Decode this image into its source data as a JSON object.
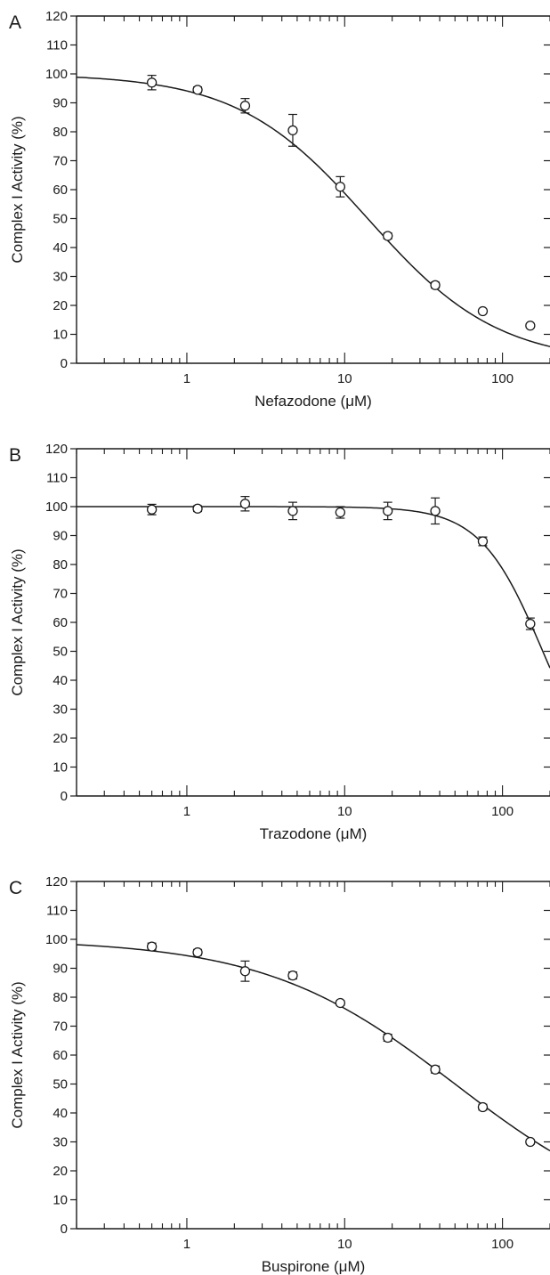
{
  "chart_data": [
    {
      "type": "scatter",
      "panel_label": "A",
      "xlabel": "Nefazodone (μM)",
      "ylabel": "Complex I Activity (%)",
      "xscale": "log",
      "xlim": [
        0.2,
        200
      ],
      "ylim": [
        0,
        120
      ],
      "x_ticks": [
        1,
        10,
        100
      ],
      "x_tick_labels": [
        "1",
        "10",
        "100"
      ],
      "y_ticks": [
        0,
        10,
        20,
        30,
        40,
        50,
        60,
        70,
        80,
        90,
        100,
        110,
        120
      ],
      "y_tick_labels": [
        "0",
        "10",
        "20",
        "30",
        "40",
        "50",
        "60",
        "70",
        "80",
        "90",
        "100",
        "110",
        "120"
      ],
      "grid": false,
      "legend": "none",
      "points": [
        {
          "x": 0.6,
          "y": 97,
          "err": 2.5
        },
        {
          "x": 1.17,
          "y": 94.5,
          "err": 1
        },
        {
          "x": 2.34,
          "y": 89,
          "err": 2.5
        },
        {
          "x": 4.69,
          "y": 80.5,
          "err": 5.5
        },
        {
          "x": 9.38,
          "y": 61,
          "err": 3.5
        },
        {
          "x": 18.75,
          "y": 44,
          "err": 1
        },
        {
          "x": 37.5,
          "y": 27,
          "err": 1
        },
        {
          "x": 75,
          "y": 18,
          "err": 0.7
        },
        {
          "x": 150,
          "y": 13,
          "err": 0.7
        }
      ],
      "fit": {
        "model": "sigmoidal dose-response",
        "top": 100,
        "ic50": 14,
        "hill": 1.05
      }
    },
    {
      "type": "scatter",
      "panel_label": "B",
      "xlabel": "Trazodone (μM)",
      "ylabel": "Complex I Activity (%)",
      "xscale": "log",
      "xlim": [
        0.2,
        200
      ],
      "ylim": [
        0,
        120
      ],
      "x_ticks": [
        1,
        10,
        100
      ],
      "x_tick_labels": [
        "1",
        "10",
        "100"
      ],
      "y_ticks": [
        0,
        10,
        20,
        30,
        40,
        50,
        60,
        70,
        80,
        90,
        100,
        110,
        120
      ],
      "y_tick_labels": [
        "0",
        "10",
        "20",
        "30",
        "40",
        "50",
        "60",
        "70",
        "80",
        "90",
        "100",
        "110",
        "120"
      ],
      "grid": false,
      "legend": "none",
      "points": [
        {
          "x": 0.6,
          "y": 99,
          "err": 1.8
        },
        {
          "x": 1.17,
          "y": 99.3,
          "err": 1
        },
        {
          "x": 2.34,
          "y": 101,
          "err": 2.5
        },
        {
          "x": 4.69,
          "y": 98.5,
          "err": 3
        },
        {
          "x": 9.38,
          "y": 98,
          "err": 2
        },
        {
          "x": 18.75,
          "y": 98.5,
          "err": 3
        },
        {
          "x": 37.5,
          "y": 98.5,
          "err": 4.5
        },
        {
          "x": 75,
          "y": 88,
          "err": 1.5
        },
        {
          "x": 150,
          "y": 59.5,
          "err": 2
        }
      ],
      "fit": {
        "model": "sigmoidal dose-response",
        "top": 100,
        "ic50": 180,
        "hill": 2.2
      }
    },
    {
      "type": "scatter",
      "panel_label": "C",
      "xlabel": "Buspirone (μM)",
      "ylabel": "Complex I Activity (%)",
      "xscale": "log",
      "xlim": [
        0.2,
        200
      ],
      "ylim": [
        0,
        120
      ],
      "x_ticks": [
        1,
        10,
        100
      ],
      "x_tick_labels": [
        "1",
        "10",
        "100"
      ],
      "y_ticks": [
        0,
        10,
        20,
        30,
        40,
        50,
        60,
        70,
        80,
        90,
        100,
        110,
        120
      ],
      "y_tick_labels": [
        "0",
        "10",
        "20",
        "30",
        "40",
        "50",
        "60",
        "70",
        "80",
        "90",
        "100",
        "110",
        "120"
      ],
      "grid": false,
      "legend": "none",
      "points": [
        {
          "x": 0.6,
          "y": 97.5,
          "err": 1.2
        },
        {
          "x": 1.17,
          "y": 95.5,
          "err": 1
        },
        {
          "x": 2.34,
          "y": 89,
          "err": 3.5
        },
        {
          "x": 4.69,
          "y": 87.5,
          "err": 1.2
        },
        {
          "x": 9.38,
          "y": 78,
          "err": 0.8
        },
        {
          "x": 18.75,
          "y": 66,
          "err": 1.2
        },
        {
          "x": 37.5,
          "y": 55,
          "err": 1.2
        },
        {
          "x": 75,
          "y": 42,
          "err": 1
        },
        {
          "x": 150,
          "y": 30,
          "err": 0.8
        }
      ],
      "fit": {
        "model": "sigmoidal dose-response",
        "top": 100,
        "ic50": 50,
        "hill": 0.72
      }
    }
  ]
}
